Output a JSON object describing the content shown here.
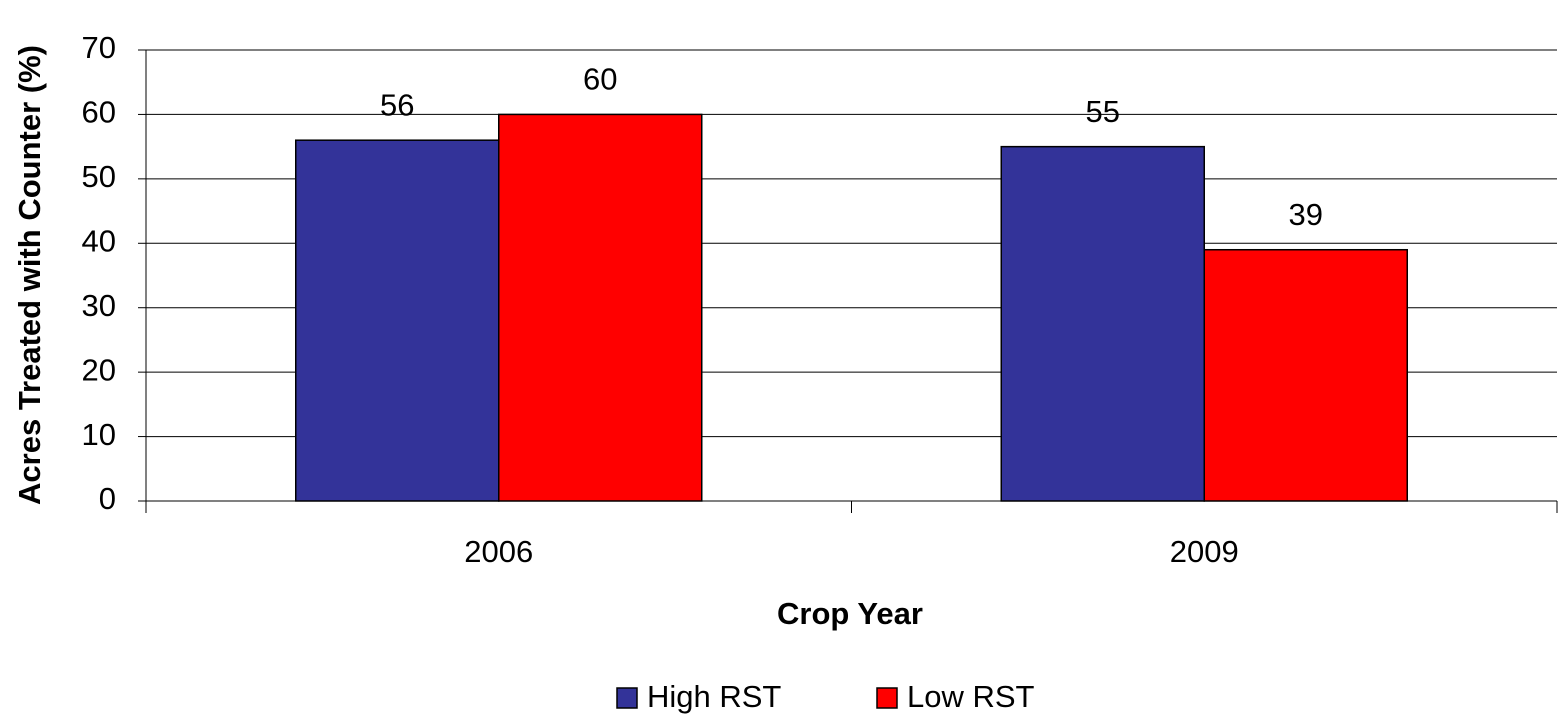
{
  "chart_data": {
    "type": "bar",
    "categories": [
      "2006",
      "2009"
    ],
    "series": [
      {
        "name": "High RST",
        "color": "#333399",
        "values": [
          56,
          55
        ]
      },
      {
        "name": "Low RST",
        "color": "#ff0000",
        "values": [
          60,
          39
        ]
      }
    ],
    "xlabel": "Crop Year",
    "ylabel": "Acres Treated with Counter (%)",
    "ylim": [
      0,
      70
    ],
    "yticks": [
      0,
      10,
      20,
      30,
      40,
      50,
      60,
      70
    ],
    "grid": true,
    "data_labels": true,
    "legend": "bottom"
  }
}
